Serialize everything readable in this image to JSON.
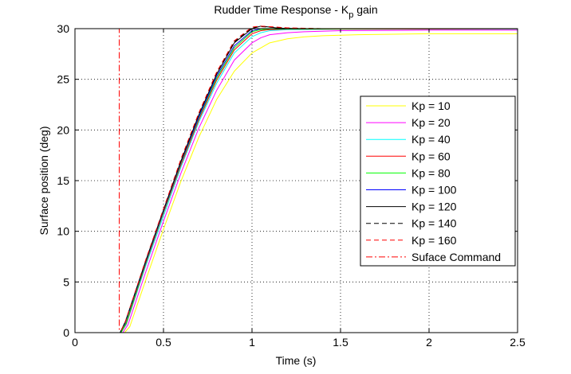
{
  "chart_data": {
    "type": "line",
    "title": "Rudder Time Response - K",
    "title_sub": "p",
    "title_suffix": " gain",
    "xlabel": "Time (s)",
    "ylabel": "Surface position (deg)",
    "xlim": [
      0,
      2.5
    ],
    "ylim": [
      0,
      30
    ],
    "xticks": [
      0,
      0.5,
      1,
      1.5,
      2,
      2.5
    ],
    "xtick_labels": [
      "0",
      "0.5",
      "1",
      "1.5",
      "2",
      "2.5"
    ],
    "yticks": [
      0,
      5,
      10,
      15,
      20,
      25,
      30
    ],
    "ytick_labels": [
      "0",
      "5",
      "10",
      "15",
      "20",
      "25",
      "30"
    ],
    "grid": true,
    "legend_position": "right",
    "series": [
      {
        "name": "Kp = 10",
        "color": "#ffff00",
        "dash": "solid",
        "x": [
          0,
          0.28,
          0.31,
          0.4,
          0.5,
          0.6,
          0.7,
          0.8,
          0.9,
          1.0,
          1.1,
          1.2,
          1.3,
          1.4,
          1.6,
          1.8,
          2.0,
          2.5
        ],
        "y": [
          0,
          0,
          0.6,
          5.2,
          10.2,
          15.0,
          19.3,
          23.0,
          25.8,
          27.6,
          28.6,
          29.0,
          29.2,
          29.3,
          29.4,
          29.45,
          29.5,
          29.5
        ]
      },
      {
        "name": "Kp = 20",
        "color": "#ff00ff",
        "dash": "solid",
        "x": [
          0,
          0.27,
          0.3,
          0.4,
          0.5,
          0.6,
          0.7,
          0.8,
          0.9,
          1.0,
          1.05,
          1.1,
          1.2,
          1.3,
          1.5,
          2.0,
          2.5
        ],
        "y": [
          0,
          0,
          0.8,
          6.0,
          11.0,
          15.8,
          20.2,
          23.9,
          26.9,
          28.6,
          29.1,
          29.4,
          29.6,
          29.7,
          29.8,
          29.85,
          29.85
        ]
      },
      {
        "name": "Kp = 40",
        "color": "#00ffff",
        "dash": "solid",
        "x": [
          0,
          0.26,
          0.29,
          0.4,
          0.5,
          0.6,
          0.7,
          0.8,
          0.9,
          1.0,
          1.05,
          1.1,
          1.2,
          1.5,
          2.5
        ],
        "y": [
          0,
          0,
          0.8,
          6.6,
          11.5,
          16.4,
          20.8,
          24.6,
          27.6,
          29.2,
          29.6,
          29.8,
          29.9,
          29.95,
          29.95
        ]
      },
      {
        "name": "Kp = 60",
        "color": "#ff0000",
        "dash": "solid",
        "x": [
          0,
          0.26,
          0.29,
          0.4,
          0.5,
          0.6,
          0.7,
          0.8,
          0.9,
          1.0,
          1.05,
          1.1,
          1.2,
          2.5
        ],
        "y": [
          0,
          0,
          0.9,
          6.8,
          11.8,
          16.6,
          21.0,
          24.9,
          27.9,
          29.5,
          29.8,
          29.9,
          29.95,
          29.98
        ]
      },
      {
        "name": "Kp = 80",
        "color": "#00ff00",
        "dash": "solid",
        "x": [
          0,
          0.26,
          0.29,
          0.4,
          0.5,
          0.6,
          0.7,
          0.8,
          0.9,
          1.0,
          1.05,
          1.1,
          2.5
        ],
        "y": [
          0,
          0,
          1.0,
          6.9,
          11.9,
          16.8,
          21.2,
          25.1,
          28.1,
          29.7,
          29.9,
          29.97,
          30.0
        ]
      },
      {
        "name": "Kp = 100",
        "color": "#0000ff",
        "dash": "solid",
        "x": [
          0,
          0.255,
          0.285,
          0.4,
          0.5,
          0.6,
          0.7,
          0.8,
          0.9,
          1.0,
          1.05,
          1.1,
          2.5
        ],
        "y": [
          0,
          0,
          1.0,
          7.0,
          12.0,
          16.9,
          21.3,
          25.3,
          28.3,
          29.8,
          30.0,
          30.0,
          30.0
        ]
      },
      {
        "name": "Kp = 120",
        "color": "#000000",
        "dash": "solid",
        "x": [
          0,
          0.255,
          0.285,
          0.4,
          0.5,
          0.6,
          0.7,
          0.8,
          0.9,
          1.0,
          1.05,
          1.08,
          1.15,
          1.3,
          2.5
        ],
        "y": [
          0,
          0,
          1.1,
          7.1,
          12.1,
          17.0,
          21.5,
          25.5,
          28.6,
          30.0,
          30.3,
          30.2,
          30.05,
          30.0,
          30.0
        ]
      },
      {
        "name": "Kp = 140",
        "color": "#000000",
        "dash": "dashed",
        "x": [
          0,
          0.255,
          0.285,
          0.4,
          0.5,
          0.6,
          0.7,
          0.8,
          0.9,
          1.0,
          1.05,
          1.1,
          1.2,
          1.4,
          2.5
        ],
        "y": [
          0,
          0,
          1.1,
          7.1,
          12.2,
          17.1,
          21.6,
          25.6,
          28.7,
          30.1,
          30.2,
          30.15,
          30.05,
          30.0,
          30.0
        ]
      },
      {
        "name": "Kp = 160",
        "color": "#ff0000",
        "dash": "dashed",
        "x": [
          0,
          0.255,
          0.285,
          0.4,
          0.5,
          0.6,
          0.7,
          0.8,
          0.9,
          1.0,
          1.05,
          1.1,
          1.2,
          1.4,
          2.5
        ],
        "y": [
          0,
          0,
          1.1,
          7.2,
          12.2,
          17.2,
          21.7,
          25.7,
          28.8,
          30.15,
          30.25,
          30.2,
          30.08,
          30.0,
          30.0
        ]
      },
      {
        "name": "Suface Command",
        "color": "#ff0000",
        "dash": "dashdot",
        "x": [
          0,
          0.25,
          0.25,
          2.5
        ],
        "y": [
          0,
          0,
          30,
          30
        ]
      }
    ]
  }
}
